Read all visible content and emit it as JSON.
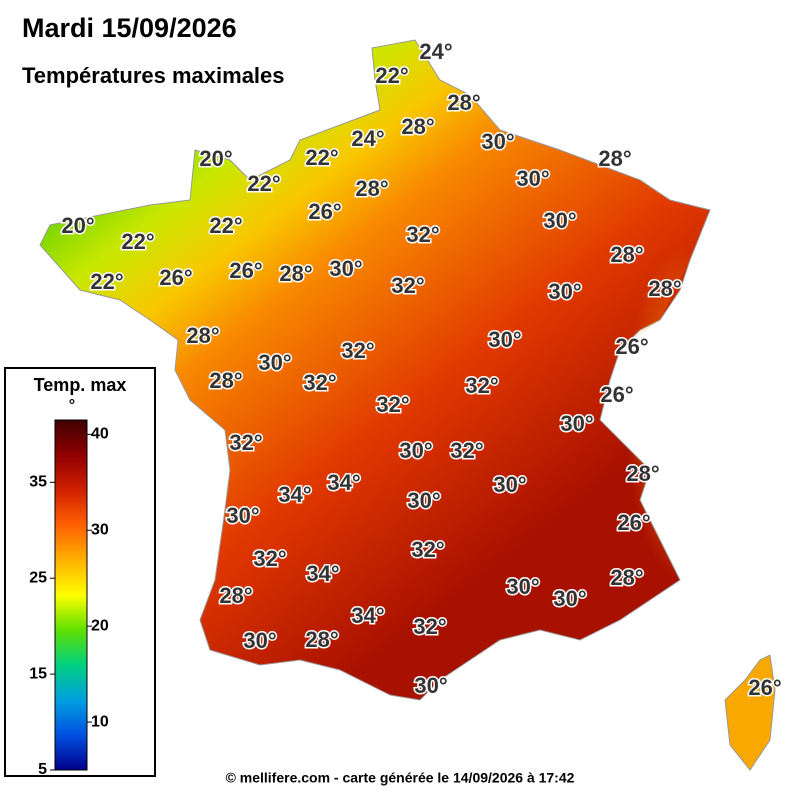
{
  "header": {
    "title": "Mardi 15/09/2026",
    "subtitle": "Températures maximales"
  },
  "legend": {
    "title": "Temp. max",
    "unit": "°",
    "range": [
      5,
      41.5
    ],
    "ticks": [
      5,
      10,
      15,
      20,
      25,
      30,
      35,
      40
    ],
    "colors": [
      "#00008b",
      "#0050e0",
      "#00a0e0",
      "#00d080",
      "#60e000",
      "#ffff00",
      "#ffb000",
      "#ff6000",
      "#d02000",
      "#900000",
      "#400000"
    ]
  },
  "labels": [
    "24°",
    "22°",
    "28°",
    "28°",
    "24°",
    "30°",
    "22°",
    "28°",
    "20°",
    "22°",
    "30°",
    "28°",
    "26°",
    "30°",
    "20°",
    "22°",
    "32°",
    "22°",
    "28°",
    "22°",
    "26°",
    "26°",
    "28°",
    "30°",
    "32°",
    "30°",
    "28°",
    "28°",
    "30°",
    "26°",
    "32°",
    "30°",
    "28°",
    "32°",
    "32°",
    "26°",
    "32°",
    "30°",
    "32°",
    "30°",
    "32°",
    "28°",
    "34°",
    "34°",
    "30°",
    "30°",
    "30°",
    "26°",
    "32°",
    "32°",
    "34°",
    "30°",
    "28°",
    "30°",
    "28°",
    "34°",
    "32°",
    "30°",
    "28°",
    "30°",
    "26°"
  ],
  "footer": "© mellifere.com - carte générée le 14/09/2026 à 17:42"
}
